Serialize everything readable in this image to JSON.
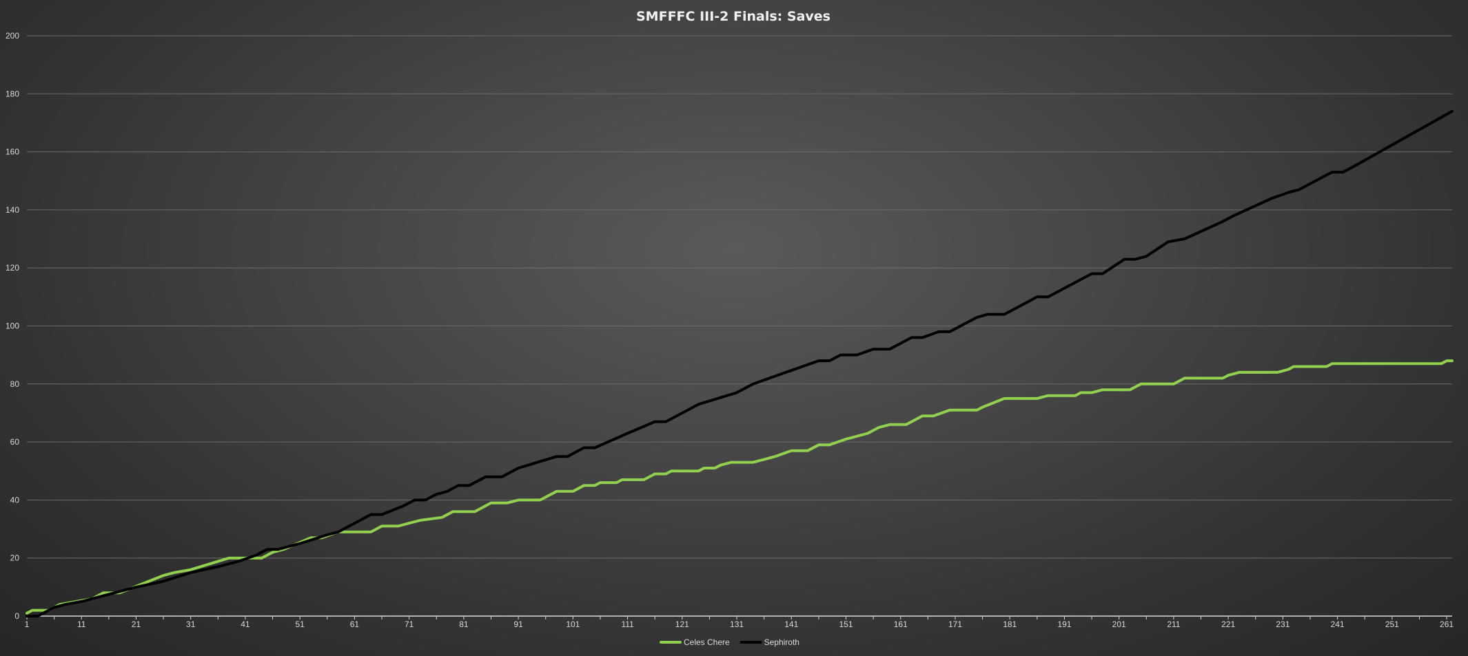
{
  "chart_data": {
    "type": "line",
    "title": "SMFFFC III-2 Finals: Saves",
    "xlabel": "",
    "ylabel": "",
    "x_range": [
      1,
      262
    ],
    "ylim": [
      0,
      200
    ],
    "y_ticks": [
      0,
      20,
      40,
      60,
      80,
      100,
      120,
      140,
      160,
      180,
      200
    ],
    "x_ticks": [
      1,
      11,
      21,
      31,
      41,
      51,
      61,
      71,
      81,
      91,
      101,
      111,
      121,
      131,
      141,
      151,
      161,
      171,
      181,
      191,
      201,
      211,
      221,
      231,
      241,
      251,
      261
    ],
    "grid": "horizontal",
    "legend_position": "bottom",
    "series": [
      {
        "name": "Celes Chere",
        "color": "#92d050",
        "points": [
          [
            1,
            1
          ],
          [
            2,
            2
          ],
          [
            5,
            2
          ],
          [
            7,
            4
          ],
          [
            13,
            6
          ],
          [
            15,
            8
          ],
          [
            18,
            8
          ],
          [
            22,
            11
          ],
          [
            26,
            14
          ],
          [
            28,
            15
          ],
          [
            31,
            16
          ],
          [
            38,
            20
          ],
          [
            41,
            20
          ],
          [
            44,
            20
          ],
          [
            46,
            22
          ],
          [
            48,
            23
          ],
          [
            53,
            27
          ],
          [
            55,
            27
          ],
          [
            58,
            29
          ],
          [
            64,
            29
          ],
          [
            66,
            31
          ],
          [
            69,
            31
          ],
          [
            71,
            32
          ],
          [
            73,
            33
          ],
          [
            77,
            34
          ],
          [
            79,
            36
          ],
          [
            83,
            36
          ],
          [
            86,
            39
          ],
          [
            89,
            39
          ],
          [
            91,
            40
          ],
          [
            95,
            40
          ],
          [
            98,
            43
          ],
          [
            101,
            43
          ],
          [
            103,
            45
          ],
          [
            105,
            45
          ],
          [
            106,
            46
          ],
          [
            109,
            46
          ],
          [
            110,
            47
          ],
          [
            114,
            47
          ],
          [
            116,
            49
          ],
          [
            118,
            49
          ],
          [
            119,
            50
          ],
          [
            124,
            50
          ],
          [
            125,
            51
          ],
          [
            127,
            51
          ],
          [
            128,
            52
          ],
          [
            130,
            53
          ],
          [
            134,
            53
          ],
          [
            136,
            54
          ],
          [
            138,
            55
          ],
          [
            141,
            57
          ],
          [
            144,
            57
          ],
          [
            146,
            59
          ],
          [
            148,
            59
          ],
          [
            151,
            61
          ],
          [
            155,
            63
          ],
          [
            157,
            65
          ],
          [
            159,
            66
          ],
          [
            162,
            66
          ],
          [
            165,
            69
          ],
          [
            167,
            69
          ],
          [
            170,
            71
          ],
          [
            175,
            71
          ],
          [
            176,
            72
          ],
          [
            180,
            75
          ],
          [
            186,
            75
          ],
          [
            188,
            76
          ],
          [
            193,
            76
          ],
          [
            194,
            77
          ],
          [
            196,
            77
          ],
          [
            198,
            78
          ],
          [
            203,
            78
          ],
          [
            205,
            80
          ],
          [
            211,
            80
          ],
          [
            213,
            82
          ],
          [
            220,
            82
          ],
          [
            221,
            83
          ],
          [
            223,
            84
          ],
          [
            230,
            84
          ],
          [
            232,
            85
          ],
          [
            233,
            86
          ],
          [
            239,
            86
          ],
          [
            240,
            87
          ],
          [
            260,
            87
          ],
          [
            261,
            88
          ],
          [
            262,
            88
          ]
        ]
      },
      {
        "name": "Sephiroth",
        "color": "#000000",
        "points": [
          [
            1,
            0
          ],
          [
            3,
            0
          ],
          [
            6,
            3
          ],
          [
            8,
            4
          ],
          [
            11,
            5
          ],
          [
            21,
            10
          ],
          [
            26,
            12
          ],
          [
            31,
            15
          ],
          [
            36,
            17
          ],
          [
            40,
            19
          ],
          [
            43,
            21
          ],
          [
            45,
            23
          ],
          [
            47,
            23
          ],
          [
            51,
            25
          ],
          [
            56,
            28
          ],
          [
            58,
            29
          ],
          [
            64,
            35
          ],
          [
            66,
            35
          ],
          [
            70,
            38
          ],
          [
            72,
            40
          ],
          [
            74,
            40
          ],
          [
            76,
            42
          ],
          [
            78,
            43
          ],
          [
            80,
            45
          ],
          [
            82,
            45
          ],
          [
            85,
            48
          ],
          [
            88,
            48
          ],
          [
            91,
            51
          ],
          [
            98,
            55
          ],
          [
            100,
            55
          ],
          [
            103,
            58
          ],
          [
            105,
            58
          ],
          [
            111,
            63
          ],
          [
            116,
            67
          ],
          [
            118,
            67
          ],
          [
            121,
            70
          ],
          [
            124,
            73
          ],
          [
            131,
            77
          ],
          [
            134,
            80
          ],
          [
            140,
            84
          ],
          [
            143,
            86
          ],
          [
            146,
            88
          ],
          [
            148,
            88
          ],
          [
            150,
            90
          ],
          [
            153,
            90
          ],
          [
            156,
            92
          ],
          [
            159,
            92
          ],
          [
            162,
            95
          ],
          [
            163,
            96
          ],
          [
            165,
            96
          ],
          [
            168,
            98
          ],
          [
            170,
            98
          ],
          [
            175,
            103
          ],
          [
            177,
            104
          ],
          [
            180,
            104
          ],
          [
            184,
            108
          ],
          [
            186,
            110
          ],
          [
            188,
            110
          ],
          [
            196,
            118
          ],
          [
            198,
            118
          ],
          [
            202,
            123
          ],
          [
            204,
            123
          ],
          [
            206,
            124
          ],
          [
            210,
            129
          ],
          [
            213,
            130
          ],
          [
            220,
            136
          ],
          [
            222,
            138
          ],
          [
            229,
            144
          ],
          [
            232,
            146
          ],
          [
            234,
            147
          ],
          [
            238,
            151
          ],
          [
            240,
            153
          ],
          [
            242,
            153
          ],
          [
            244,
            155
          ],
          [
            262,
            174
          ]
        ]
      }
    ]
  }
}
